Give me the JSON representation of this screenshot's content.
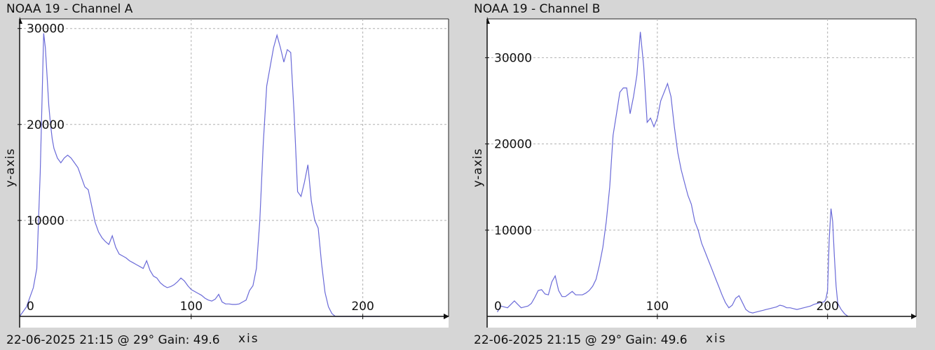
{
  "chart_data": [
    {
      "type": "line",
      "title": "NOAA 19 - Channel A",
      "footer": "22-06-2025 21:15 @ 29° Gain: 49.6",
      "xlabel": "xis",
      "ylabel": "y-axis",
      "xlim": [
        0,
        250
      ],
      "ylim": [
        0,
        31000
      ],
      "xticks": [
        {
          "value": 0,
          "label": "0"
        },
        {
          "value": 100,
          "label": "100"
        },
        {
          "value": 200,
          "label": "200"
        }
      ],
      "yticks": [
        {
          "value": 10000,
          "label": "10000"
        },
        {
          "value": 20000,
          "label": "20000"
        },
        {
          "value": 30000,
          "label": "30000"
        }
      ],
      "grid": true,
      "color": "#6a6ad8",
      "series": [
        {
          "x": [
            0,
            4,
            6,
            8,
            10,
            12,
            13,
            14,
            15,
            16,
            17,
            18,
            19,
            20,
            22,
            24,
            26,
            28,
            30,
            32,
            34,
            36,
            38,
            40,
            42,
            44,
            46,
            48,
            50,
            52,
            54,
            56,
            58,
            60,
            62,
            64,
            66,
            68,
            70,
            72,
            74,
            76,
            78,
            80,
            82,
            84,
            86,
            88,
            90,
            92,
            94,
            96,
            98,
            100,
            102,
            104,
            106,
            108,
            110,
            112,
            114,
            116,
            118,
            120,
            122,
            124,
            126,
            128,
            130,
            132,
            134,
            136,
            138,
            140,
            142,
            144,
            146,
            148,
            150,
            152,
            154,
            156,
            158,
            160,
            162,
            164,
            166,
            168,
            170,
            172,
            174,
            176,
            178,
            180,
            182,
            184,
            186,
            188,
            190,
            192,
            194,
            196,
            198,
            200,
            202,
            204,
            206,
            208,
            210,
            212,
            214,
            216
          ],
          "y": [
            0,
            1000,
            2000,
            3000,
            5000,
            15000,
            22000,
            29500,
            28000,
            25000,
            22000,
            20000,
            18500,
            17500,
            16500,
            16000,
            16500,
            16800,
            16500,
            16000,
            15500,
            14500,
            13500,
            13200,
            11500,
            9800,
            8800,
            8200,
            7800,
            7500,
            8400,
            7200,
            6500,
            6300,
            6100,
            5800,
            5600,
            5400,
            5200,
            5000,
            5800,
            4800,
            4200,
            4000,
            3500,
            3200,
            3000,
            3100,
            3300,
            3600,
            4000,
            3700,
            3200,
            2800,
            2600,
            2400,
            2200,
            1900,
            1700,
            1600,
            1800,
            2300,
            1500,
            1300,
            1300,
            1250,
            1250,
            1300,
            1500,
            1700,
            2700,
            3200,
            5000,
            10000,
            18000,
            24000,
            26000,
            28000,
            29300,
            28000,
            26500,
            27800,
            27500,
            21000,
            13000,
            12500,
            14000,
            15800,
            12000,
            10000,
            9200,
            5500,
            2500,
            1000,
            300,
            0,
            0,
            0,
            0,
            0,
            0,
            0,
            0,
            0,
            0,
            0,
            0,
            0,
            0,
            0,
            0,
            0
          ],
          "x_trim": 210
        }
      ]
    },
    {
      "type": "line",
      "title": "NOAA 19 - Channel B",
      "footer": "22-06-2025 21:15 @ 29° Gain: 49.6",
      "xlabel": "xis",
      "ylabel": "y-axis",
      "xlim": [
        0,
        252
      ],
      "ylim": [
        0,
        34500
      ],
      "xticks": [
        {
          "value": 0,
          "label": "0"
        },
        {
          "value": 100,
          "label": "100"
        },
        {
          "value": 200,
          "label": "200"
        }
      ],
      "yticks": [
        {
          "value": 10000,
          "label": "10000"
        },
        {
          "value": 20000,
          "label": "20000"
        },
        {
          "value": 30000,
          "label": "30000"
        }
      ],
      "grid": true,
      "color": "#6a6ad8",
      "series": [
        {
          "x": [
            6,
            8,
            10,
            12,
            14,
            16,
            18,
            20,
            22,
            24,
            26,
            28,
            30,
            32,
            34,
            36,
            38,
            40,
            42,
            44,
            46,
            48,
            50,
            52,
            54,
            56,
            58,
            60,
            62,
            64,
            66,
            68,
            70,
            72,
            74,
            76,
            78,
            80,
            82,
            84,
            86,
            88,
            90,
            92,
            94,
            96,
            98,
            100,
            102,
            104,
            106,
            108,
            110,
            112,
            114,
            116,
            118,
            120,
            122,
            124,
            126,
            128,
            130,
            132,
            134,
            136,
            138,
            140,
            142,
            144,
            146,
            148,
            150,
            152,
            154,
            156,
            158,
            160,
            162,
            164,
            166,
            168,
            170,
            172,
            174,
            176,
            178,
            180,
            182,
            184,
            186,
            188,
            190,
            192,
            194,
            196,
            198,
            199,
            200,
            201,
            202,
            203,
            204,
            205,
            206,
            208,
            210,
            212
          ],
          "y": [
            500,
            1200,
            1100,
            1000,
            1400,
            1800,
            1400,
            1000,
            1100,
            1200,
            1500,
            2200,
            3000,
            3100,
            2600,
            2500,
            4000,
            4700,
            3000,
            2300,
            2300,
            2600,
            2900,
            2500,
            2500,
            2500,
            2700,
            3000,
            3500,
            4300,
            6000,
            8000,
            11000,
            15000,
            21000,
            23500,
            26000,
            26500,
            26500,
            23500,
            25500,
            28000,
            33000,
            29000,
            22500,
            23000,
            22000,
            23000,
            25000,
            26000,
            27000,
            25500,
            22000,
            19000,
            17000,
            15500,
            14000,
            13000,
            11000,
            10000,
            8500,
            7500,
            6500,
            5500,
            4500,
            3500,
            2500,
            1600,
            1000,
            1300,
            2100,
            2400,
            1600,
            800,
            500,
            400,
            500,
            600,
            700,
            800,
            900,
            1000,
            1100,
            1300,
            1200,
            1000,
            1000,
            900,
            800,
            900,
            1000,
            1100,
            1200,
            1400,
            1500,
            1600,
            1700,
            2000,
            3000,
            9000,
            12500,
            11000,
            7000,
            3500,
            1500,
            800,
            300,
            0
          ]
        }
      ]
    }
  ]
}
